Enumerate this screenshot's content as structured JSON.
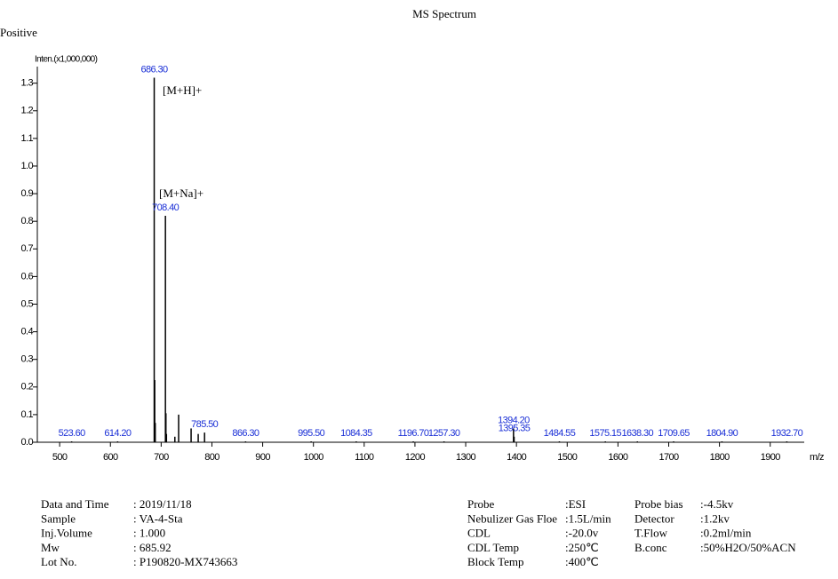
{
  "chart_data": {
    "type": "spectrum",
    "title": "MS    Spectrum",
    "subtitle": "Positive",
    "y_label": "Inten.(x1,000,000)",
    "x_label": "m/z",
    "color": "#000000",
    "label_color": "#1a2fd6",
    "xlim": [
      456,
      1967
    ],
    "ylim": [
      0,
      1.36
    ],
    "xticks": [
      500,
      600,
      700,
      800,
      900,
      1000,
      1100,
      1200,
      1300,
      1400,
      1500,
      1600,
      1700,
      1800,
      1900
    ],
    "yticks": [
      {
        "value": 0,
        "label": "0.0"
      },
      0.1,
      0.2,
      0.3,
      0.4,
      0.5,
      0.6,
      0.7,
      0.8,
      0.9,
      {
        "value": 1,
        "label": "1.0"
      },
      1.1,
      1.2,
      1.3
    ],
    "x": [
      {
        "value": 523.6,
        "label": "523.60"
      },
      {
        "value": 614.2,
        "label": "614.20"
      },
      {
        "value": 686.3,
        "label": "686.30"
      },
      687.3,
      688.3,
      {
        "value": 708.4,
        "label": "708.40"
      },
      709.4,
      710.4,
      727,
      734.4,
      759,
      773,
      {
        "value": 785.5,
        "label": "785.50"
      },
      {
        "value": 866.3,
        "label": "866.30"
      },
      {
        "value": 995.5,
        "label": "995.50"
      },
      {
        "value": 1084.35,
        "label": "1084.35"
      },
      {
        "value": 1196.7,
        "label": "1196.70"
      },
      {
        "value": 1257.3,
        "label": "1257.30"
      },
      {
        "value": 1394.2,
        "label": "1394.20"
      },
      {
        "value": 1395.35,
        "label": "1395.35"
      },
      {
        "value": 1484.55,
        "label": "1484.55"
      },
      {
        "value": 1575.15,
        "label": "1575.15"
      },
      {
        "value": 1638.3,
        "label": "1638.30"
      },
      {
        "value": 1709.65,
        "label": "1709.65"
      },
      {
        "value": 1804.9,
        "label": "1804.90"
      },
      {
        "value": 1932.7,
        "label": "1932.70"
      }
    ],
    "values": [
      0.003,
      0.003,
      1.32,
      0.225,
      0.07,
      0.82,
      0.105,
      0.03,
      0.02,
      0.1,
      0.05,
      0.03,
      0.035,
      0.003,
      0.003,
      0.003,
      0.003,
      0.003,
      0.05,
      0.02,
      0.003,
      0.003,
      0.003,
      0.003,
      0.003,
      0.003
    ],
    "annotations": [
      "[M+H]+",
      "[M+Na]+"
    ]
  },
  "metadata": {
    "left": [
      [
        "Data and Time",
        ": 2019/11/18"
      ],
      [
        "Sample",
        ": VA-4-Sta"
      ],
      [
        "Inj.Volume",
        ": 1.000"
      ],
      [
        "Mw",
        ": 685.92"
      ],
      [
        "Lot No.",
        ": P190820-MX743663"
      ]
    ],
    "right": [
      [
        "Probe",
        ":ESI",
        "Probe bias",
        ":-4.5kv"
      ],
      [
        "Nebulizer Gas Floe",
        ":1.5L/min",
        "Detector",
        ":1.2kv"
      ],
      [
        "CDL",
        ":-20.0v",
        "T.Flow",
        ":0.2ml/min"
      ],
      [
        "CDL Temp",
        ":250℃",
        "B.conc",
        ":50%H2O/50%ACN"
      ],
      [
        "Block Temp",
        ":400℃"
      ]
    ]
  }
}
